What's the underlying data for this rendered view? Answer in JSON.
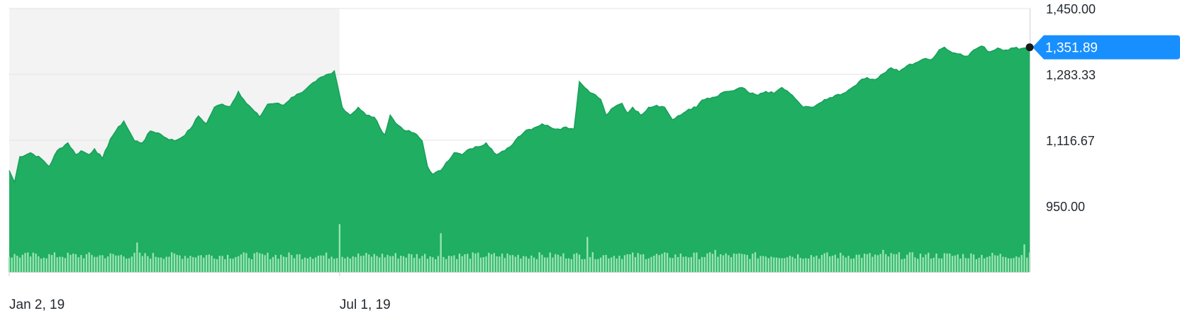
{
  "colors": {
    "area": "#1fae62",
    "area_stroke": "#17a05a",
    "volume": "#9be4b2",
    "volume_line": "#ffffff",
    "shade": "#f3f3f3",
    "grid": "#e3e3e3",
    "axis": "#cfcfcf",
    "text": "#232a31",
    "badge": "#188fff",
    "badge_text": "#ffffff",
    "dot": "#1a1a1a"
  },
  "chart_data": {
    "type": "area",
    "title": "",
    "xlabel": "",
    "ylabel": "",
    "ylim": [
      783.33,
      1450.0
    ],
    "y_ticks": [
      {
        "value": 1450.0,
        "label": "1,450.00"
      },
      {
        "value": 1283.33,
        "label": "1,283.33"
      },
      {
        "value": 1116.67,
        "label": "1,116.67"
      },
      {
        "value": 950.0,
        "label": "950.00"
      }
    ],
    "x_ticks": [
      {
        "index": 0,
        "label": "Jan 2, 19"
      },
      {
        "index": 124,
        "label": "Jul 1, 19"
      }
    ],
    "grid": true,
    "shaded_range": [
      0,
      124
    ],
    "last_value": {
      "value": 1351.89,
      "label": "1,351.89"
    },
    "price_anchors": [
      [
        0,
        1040
      ],
      [
        2,
        1010
      ],
      [
        4,
        1075
      ],
      [
        8,
        1085
      ],
      [
        12,
        1070
      ],
      [
        15,
        1050
      ],
      [
        18,
        1090
      ],
      [
        22,
        1110
      ],
      [
        25,
        1080
      ],
      [
        27,
        1090
      ],
      [
        30,
        1080
      ],
      [
        32,
        1095
      ],
      [
        35,
        1070
      ],
      [
        38,
        1120
      ],
      [
        40,
        1140
      ],
      [
        43,
        1165
      ],
      [
        45,
        1140
      ],
      [
        47,
        1115
      ],
      [
        50,
        1110
      ],
      [
        53,
        1140
      ],
      [
        56,
        1135
      ],
      [
        59,
        1122
      ],
      [
        62,
        1115
      ],
      [
        65,
        1125
      ],
      [
        68,
        1145
      ],
      [
        71,
        1178
      ],
      [
        74,
        1158
      ],
      [
        77,
        1200
      ],
      [
        80,
        1208
      ],
      [
        83,
        1202
      ],
      [
        86,
        1240
      ],
      [
        89,
        1210
      ],
      [
        92,
        1190
      ],
      [
        94,
        1175
      ],
      [
        97,
        1208
      ],
      [
        100,
        1210
      ],
      [
        103,
        1205
      ],
      [
        106,
        1225
      ],
      [
        109,
        1235
      ],
      [
        112,
        1250
      ],
      [
        115,
        1265
      ],
      [
        118,
        1278
      ],
      [
        121,
        1285
      ],
      [
        122,
        1292
      ],
      [
        125,
        1200
      ],
      [
        128,
        1180
      ],
      [
        131,
        1200
      ],
      [
        134,
        1180
      ],
      [
        137,
        1175
      ],
      [
        139,
        1150
      ],
      [
        141,
        1130
      ],
      [
        143,
        1180
      ],
      [
        145,
        1160
      ],
      [
        147,
        1150
      ],
      [
        149,
        1140
      ],
      [
        152,
        1135
      ],
      [
        155,
        1115
      ],
      [
        157,
        1050
      ],
      [
        159,
        1030
      ],
      [
        162,
        1040
      ],
      [
        164,
        1060
      ],
      [
        167,
        1085
      ],
      [
        170,
        1080
      ],
      [
        173,
        1095
      ],
      [
        176,
        1100
      ],
      [
        179,
        1110
      ],
      [
        181,
        1095
      ],
      [
        183,
        1080
      ],
      [
        186,
        1090
      ],
      [
        188,
        1100
      ],
      [
        191,
        1125
      ],
      [
        194,
        1142
      ],
      [
        197,
        1148
      ],
      [
        200,
        1158
      ],
      [
        203,
        1150
      ],
      [
        206,
        1145
      ],
      [
        209,
        1150
      ],
      [
        212,
        1145
      ],
      [
        214,
        1265
      ],
      [
        216,
        1250
      ],
      [
        219,
        1235
      ],
      [
        222,
        1220
      ],
      [
        224,
        1180
      ],
      [
        227,
        1200
      ],
      [
        230,
        1210
      ],
      [
        232,
        1185
      ],
      [
        234,
        1200
      ],
      [
        237,
        1180
      ],
      [
        240,
        1200
      ],
      [
        243,
        1205
      ],
      [
        246,
        1200
      ],
      [
        249,
        1168
      ],
      [
        252,
        1180
      ],
      [
        255,
        1195
      ],
      [
        258,
        1200
      ],
      [
        260,
        1218
      ],
      [
        263,
        1222
      ],
      [
        266,
        1228
      ],
      [
        269,
        1240
      ],
      [
        272,
        1242
      ],
      [
        275,
        1250
      ],
      [
        278,
        1235
      ],
      [
        281,
        1230
      ],
      [
        284,
        1240
      ],
      [
        287,
        1235
      ],
      [
        290,
        1250
      ],
      [
        293,
        1235
      ],
      [
        296,
        1215
      ],
      [
        298,
        1200
      ],
      [
        301,
        1200
      ],
      [
        304,
        1210
      ],
      [
        307,
        1220
      ],
      [
        310,
        1230
      ],
      [
        313,
        1235
      ],
      [
        316,
        1248
      ],
      [
        319,
        1265
      ],
      [
        322,
        1275
      ],
      [
        325,
        1270
      ],
      [
        328,
        1285
      ],
      [
        331,
        1300
      ],
      [
        334,
        1290
      ],
      [
        337,
        1305
      ],
      [
        340,
        1312
      ],
      [
        343,
        1322
      ],
      [
        346,
        1320
      ],
      [
        349,
        1345
      ],
      [
        351,
        1352
      ],
      [
        354,
        1338
      ],
      [
        357,
        1335
      ],
      [
        360,
        1330
      ],
      [
        362,
        1345
      ],
      [
        365,
        1355
      ],
      [
        368,
        1340
      ],
      [
        371,
        1350
      ],
      [
        374,
        1345
      ],
      [
        377,
        1350
      ],
      [
        380,
        1349
      ],
      [
        383,
        1351.89
      ]
    ],
    "volume_spikes": {
      "48": 1.6,
      "124": 2.6,
      "162": 2.1,
      "217": 1.9,
      "265": 1.2,
      "328": 1.2,
      "381": 1.5
    }
  }
}
